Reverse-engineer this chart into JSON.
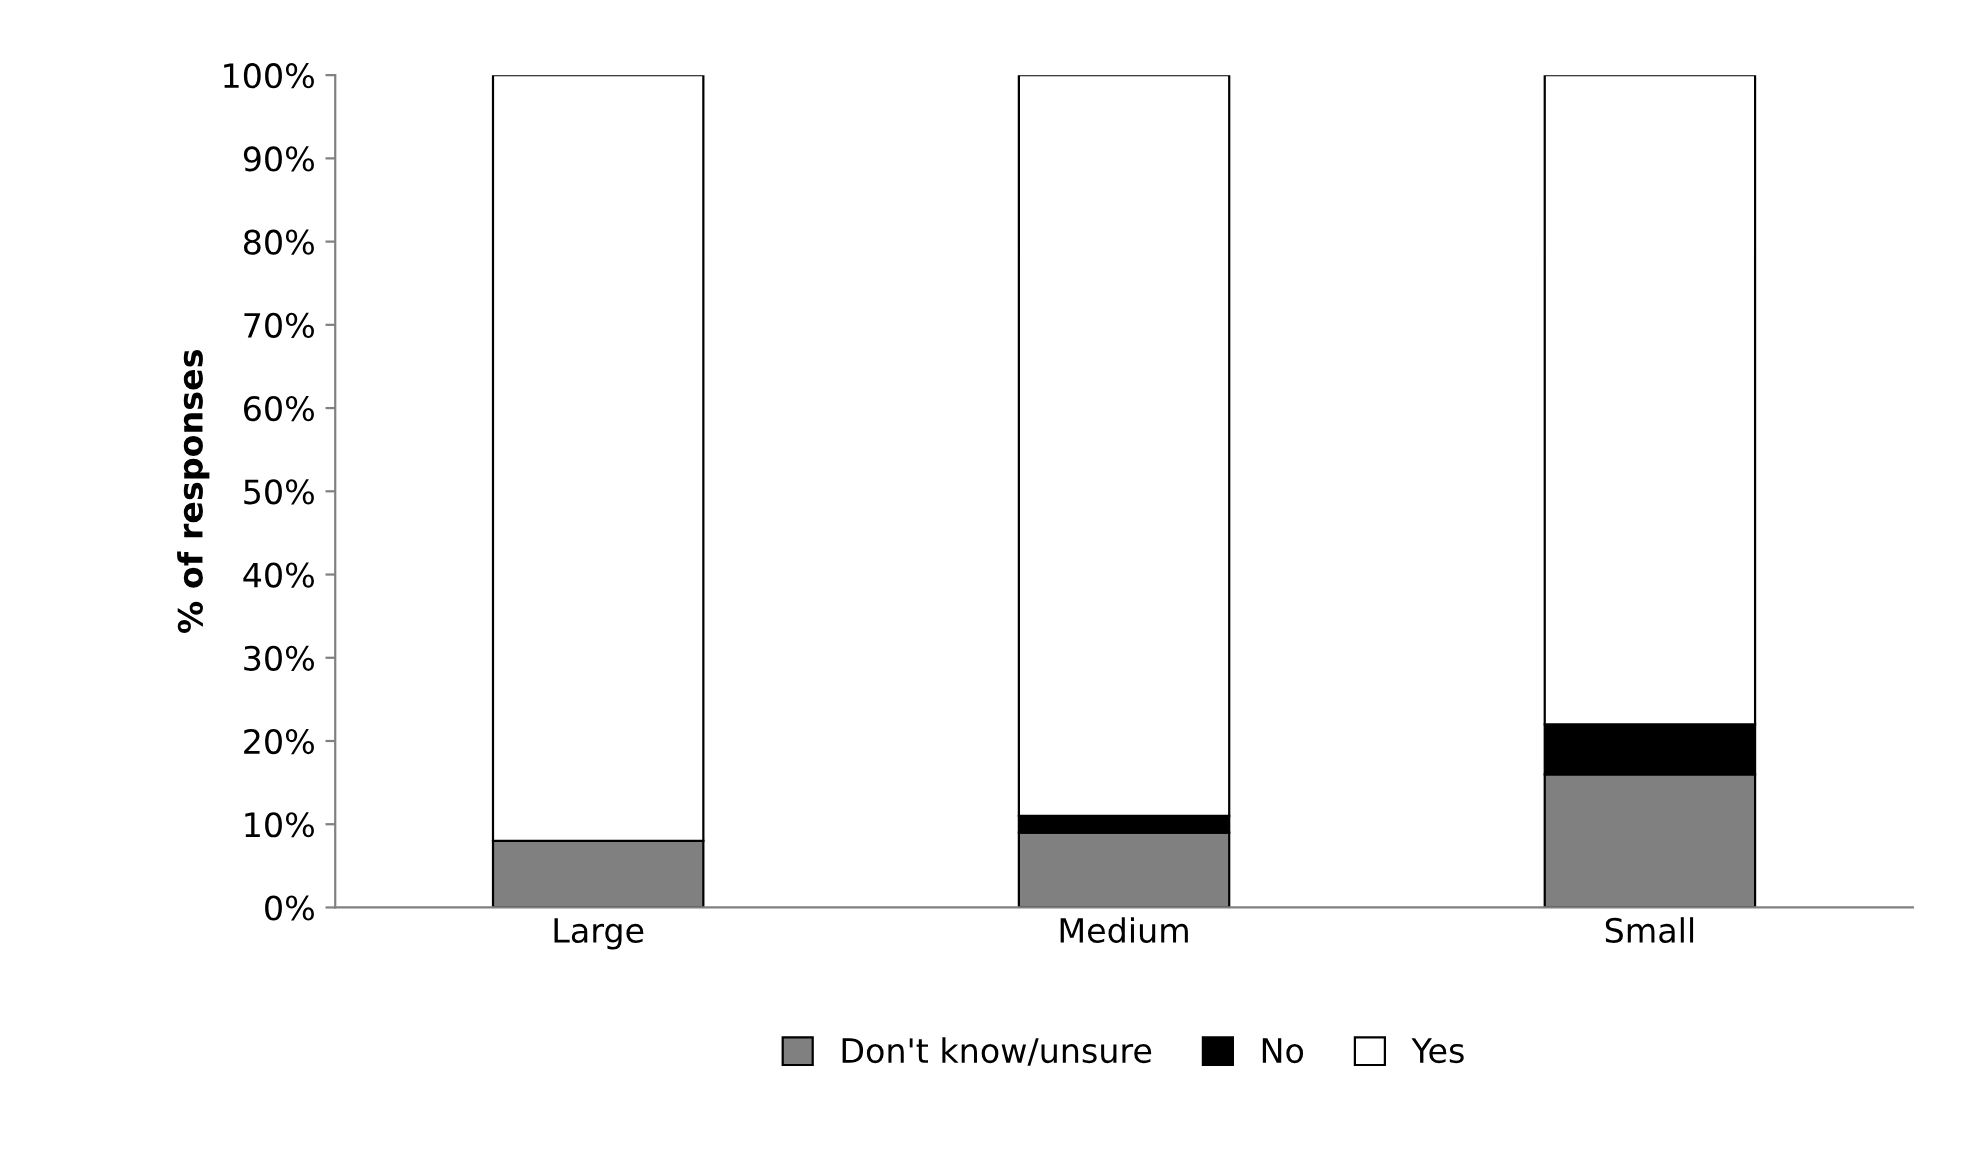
{
  "chart_data": {
    "type": "bar",
    "stacked": true,
    "ylabel": "% of responses",
    "categories": [
      "Large",
      "Medium",
      "Small"
    ],
    "series": [
      {
        "name": "Don't know/unsure",
        "color": "#808080",
        "values": [
          8,
          9,
          16
        ]
      },
      {
        "name": "No",
        "color": "#000000",
        "values": [
          0,
          2,
          6
        ]
      },
      {
        "name": "Yes",
        "color": "#ffffff",
        "values": [
          92,
          89,
          78
        ]
      }
    ],
    "ylim": [
      0,
      100
    ],
    "yticks": [
      {
        "value": 0,
        "label": "0%"
      },
      {
        "value": 10,
        "label": "10%"
      },
      {
        "value": 20,
        "label": "20%"
      },
      {
        "value": 30,
        "label": "30%"
      },
      {
        "value": 40,
        "label": "40%"
      },
      {
        "value": 50,
        "label": "50%"
      },
      {
        "value": 60,
        "label": "60%"
      },
      {
        "value": 70,
        "label": "70%"
      },
      {
        "value": 80,
        "label": "80%"
      },
      {
        "value": 90,
        "label": "90%"
      },
      {
        "value": 100,
        "label": "100%"
      }
    ],
    "legend": "bottom"
  }
}
